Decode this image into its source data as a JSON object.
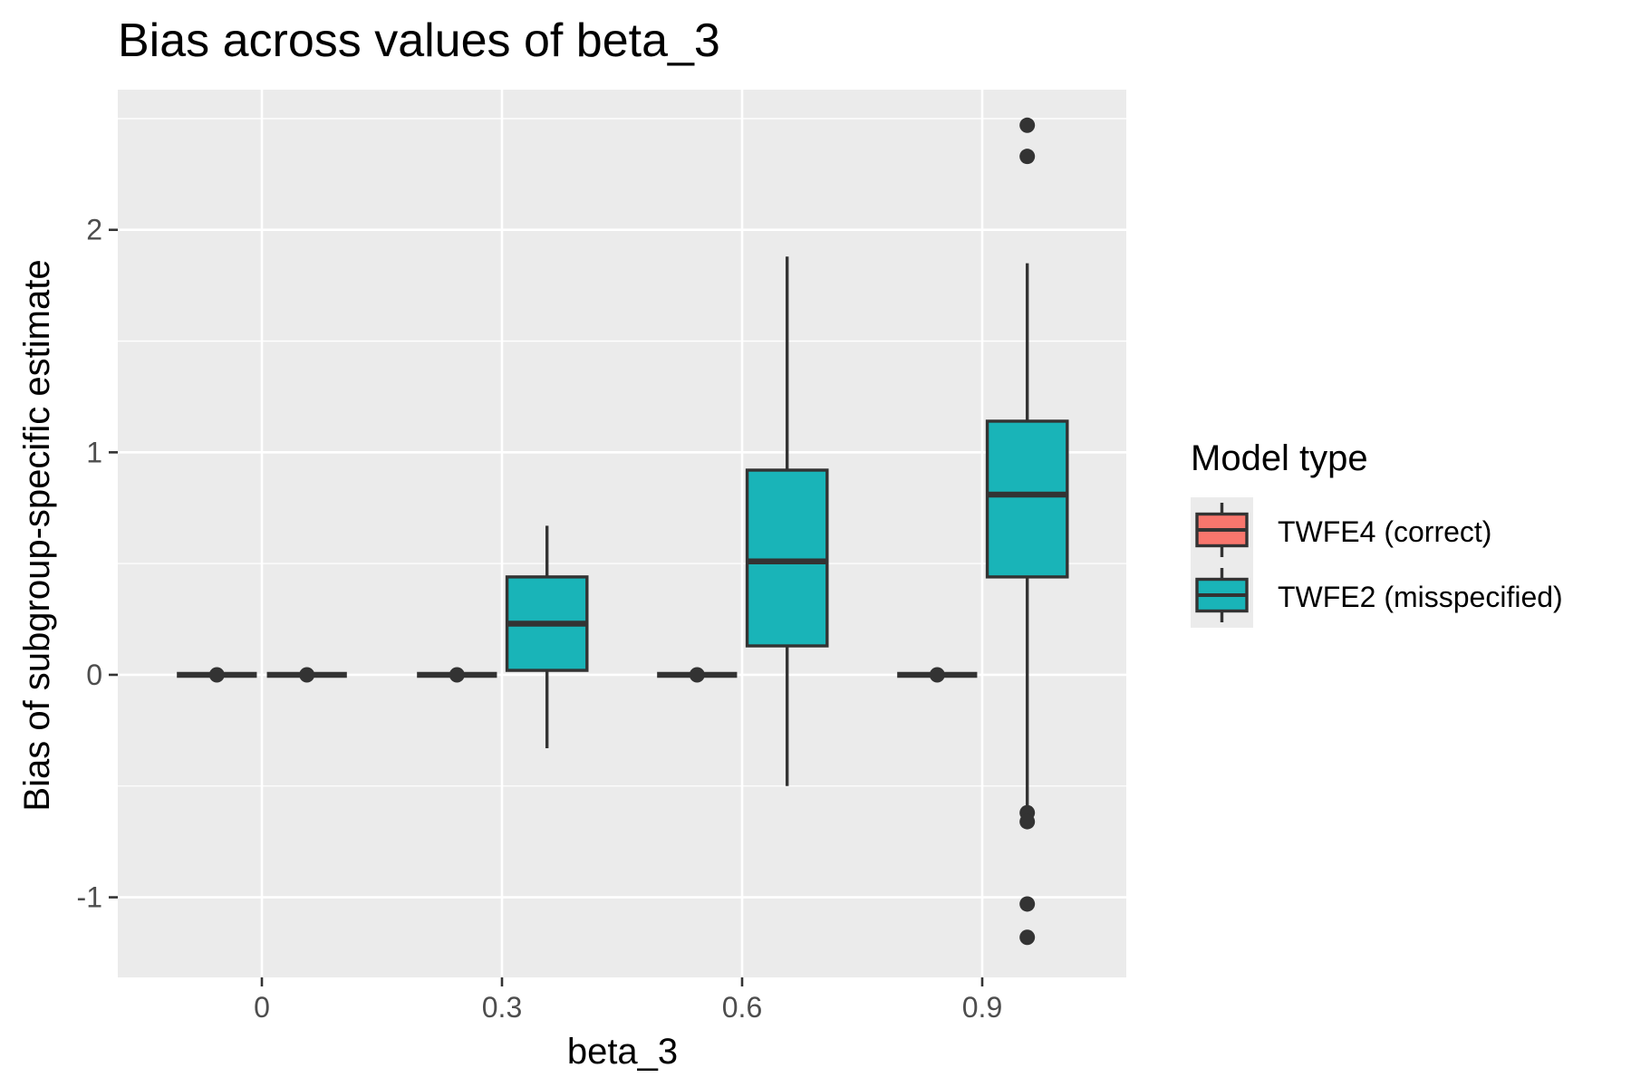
{
  "chart_data": {
    "type": "box",
    "title": "Bias across values of beta_3",
    "xlabel": "beta_3",
    "ylabel": "Bias of subgroup-specific estimate",
    "categories": [
      "0",
      "0.3",
      "0.6",
      "0.9"
    ],
    "y_ticks": [
      -1,
      0,
      1,
      2
    ],
    "y_tick_labels": [
      "-1",
      "0",
      "1",
      "2"
    ],
    "ylim": [
      -1.36,
      2.63
    ],
    "grid": true,
    "legend": {
      "title": "Model type",
      "position": "right",
      "entries": [
        "TWFE4 (correct)",
        "TWFE2 (misspecified)"
      ]
    },
    "series": [
      {
        "name": "TWFE4 (correct)",
        "color": "#F8766D",
        "boxes": [
          {
            "category": "0",
            "min": 0,
            "q1": 0,
            "median": 0,
            "q3": 0,
            "max": 0,
            "outliers": [
              0
            ]
          },
          {
            "category": "0.3",
            "min": 0,
            "q1": 0,
            "median": 0,
            "q3": 0,
            "max": 0,
            "outliers": [
              0
            ]
          },
          {
            "category": "0.6",
            "min": 0,
            "q1": 0,
            "median": 0,
            "q3": 0,
            "max": 0,
            "outliers": [
              0
            ]
          },
          {
            "category": "0.9",
            "min": 0,
            "q1": 0,
            "median": 0,
            "q3": 0,
            "max": 0,
            "outliers": [
              0
            ]
          }
        ]
      },
      {
        "name": "TWFE2 (misspecified)",
        "color": "#19B4B8",
        "boxes": [
          {
            "category": "0",
            "min": 0,
            "q1": 0,
            "median": 0,
            "q3": 0,
            "max": 0,
            "outliers": [
              0
            ]
          },
          {
            "category": "0.3",
            "min": -0.33,
            "q1": 0.02,
            "median": 0.23,
            "q3": 0.44,
            "max": 0.67,
            "outliers": []
          },
          {
            "category": "0.6",
            "min": -0.5,
            "q1": 0.13,
            "median": 0.51,
            "q3": 0.92,
            "max": 1.88,
            "outliers": []
          },
          {
            "category": "0.9",
            "min": -0.6,
            "q1": 0.44,
            "median": 0.81,
            "q3": 1.14,
            "max": 1.85,
            "outliers": [
              2.47,
              2.33,
              -0.62,
              -0.66,
              -1.03,
              -1.18
            ]
          }
        ]
      }
    ]
  }
}
